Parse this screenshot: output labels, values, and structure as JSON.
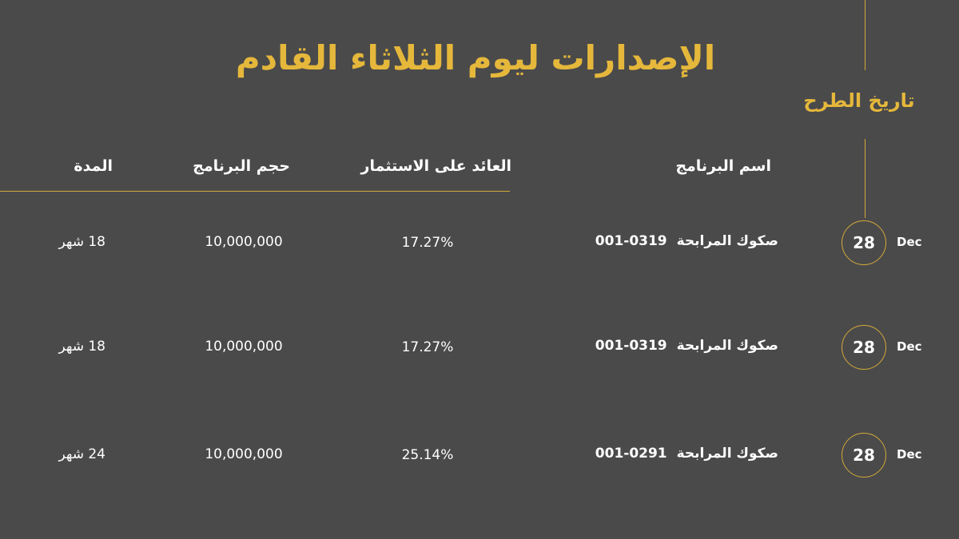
{
  "title": "الإصدارات ليوم الثلاثاء القادم",
  "date_header": "تاريخ الطرح",
  "columns": {
    "name": "اسم البرنامج",
    "yield": "العائد على الاستثمار",
    "size": "حجم البرنامج",
    "duration": "المدة"
  },
  "rows": [
    {
      "day": "28",
      "month": "Dec",
      "name": "صكوك المرابحة",
      "code": "001-0319",
      "yield": "17.27%",
      "size": "10,000,000",
      "duration": "18 شهر"
    },
    {
      "day": "28",
      "month": "Dec",
      "name": "صكوك المرابحة",
      "code": "001-0319",
      "yield": "17.27%",
      "size": "10,000,000",
      "duration": "18 شهر"
    },
    {
      "day": "28",
      "month": "Dec",
      "name": "صكوك المرابحة",
      "code": "001-0291",
      "yield": "25.14%",
      "size": "10,000,000",
      "duration": "24 شهر"
    }
  ],
  "colors": {
    "background": "#4a4a4a",
    "accent": "#e5b73b",
    "line": "#d4a93a",
    "text": "#ffffff"
  }
}
